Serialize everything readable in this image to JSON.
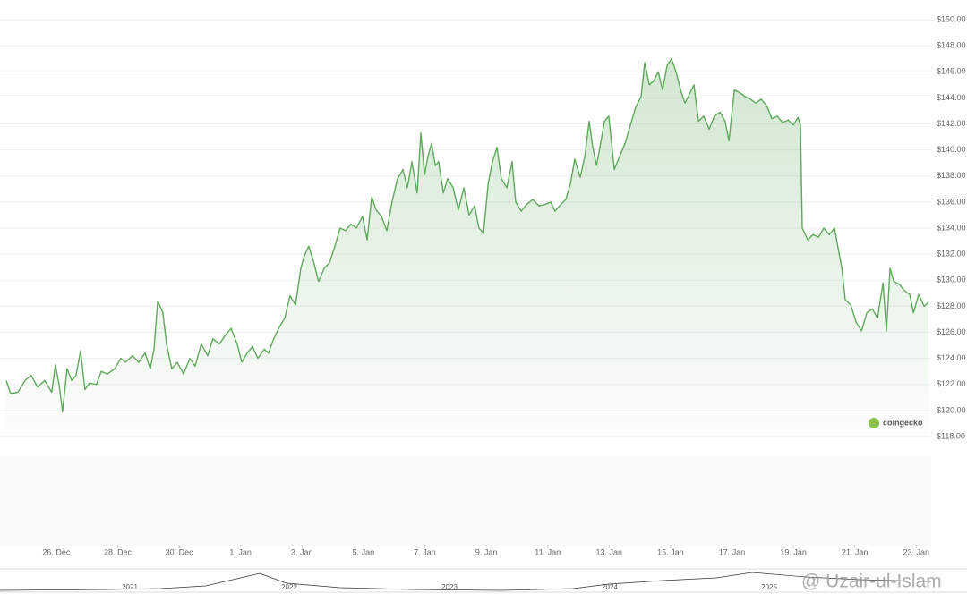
{
  "chart_data": {
    "type": "line",
    "color": "#5ea95b",
    "grid": true,
    "xlim": [
      24.37,
      54.4
    ],
    "ylim": [
      118,
      150
    ],
    "yticks": [
      {
        "value": 118,
        "label": "$118.00"
      },
      {
        "value": 120,
        "label": "$120.00"
      },
      {
        "value": 122,
        "label": "$122.00"
      },
      {
        "value": 124,
        "label": "$124.00"
      },
      {
        "value": 126,
        "label": "$126.00"
      },
      {
        "value": 128,
        "label": "$128.00"
      },
      {
        "value": 130,
        "label": "$130.00"
      },
      {
        "value": 132,
        "label": "$132.00"
      },
      {
        "value": 134,
        "label": "$134.00"
      },
      {
        "value": 136,
        "label": "$136.00"
      },
      {
        "value": 138,
        "label": "$138.00"
      },
      {
        "value": 140,
        "label": "$140.00"
      },
      {
        "value": 142,
        "label": "$142.00"
      },
      {
        "value": 144,
        "label": "$144.00"
      },
      {
        "value": 146,
        "label": "$146.00"
      },
      {
        "value": 148,
        "label": "$148.00"
      },
      {
        "value": 150,
        "label": "$150.00"
      }
    ],
    "xticks": [
      {
        "value": 26,
        "label": "26. Dec"
      },
      {
        "value": 28,
        "label": "28. Dec"
      },
      {
        "value": 30,
        "label": "30. Dec"
      },
      {
        "value": 32,
        "label": "1. Jan"
      },
      {
        "value": 34,
        "label": "3. Jan"
      },
      {
        "value": 36,
        "label": "5. Jan"
      },
      {
        "value": 38,
        "label": "7. Jan"
      },
      {
        "value": 40,
        "label": "9. Jan"
      },
      {
        "value": 42,
        "label": "11. Jan"
      },
      {
        "value": 44,
        "label": "13. Jan"
      },
      {
        "value": 46,
        "label": "15. Jan"
      },
      {
        "value": 48,
        "label": "17. Jan"
      },
      {
        "value": 50,
        "label": "19. Jan"
      },
      {
        "value": 52,
        "label": "21. Jan"
      },
      {
        "value": 54,
        "label": "23. Jan"
      }
    ],
    "x": [
      24.37,
      24.51,
      24.75,
      24.98,
      25.18,
      25.39,
      25.62,
      25.85,
      25.97,
      26.09,
      26.2,
      26.35,
      26.5,
      26.64,
      26.79,
      26.93,
      27.08,
      27.31,
      27.46,
      27.66,
      27.9,
      28.1,
      28.25,
      28.48,
      28.68,
      28.89,
      29.06,
      29.18,
      29.3,
      29.47,
      29.59,
      29.76,
      29.94,
      30.14,
      30.35,
      30.52,
      30.72,
      30.93,
      31.1,
      31.31,
      31.51,
      31.69,
      31.89,
      32.04,
      32.21,
      32.39,
      32.56,
      32.77,
      32.91,
      33.06,
      33.26,
      33.44,
      33.61,
      33.79,
      33.96,
      34.08,
      34.22,
      34.37,
      34.54,
      34.72,
      34.89,
      35.07,
      35.24,
      35.42,
      35.59,
      35.77,
      35.97,
      36.12,
      36.27,
      36.41,
      36.59,
      36.76,
      36.94,
      37.11,
      37.29,
      37.43,
      37.58,
      37.75,
      37.87,
      37.99,
      38.1,
      38.22,
      38.34,
      38.45,
      38.6,
      38.74,
      38.92,
      39.09,
      39.27,
      39.44,
      39.62,
      39.76,
      39.91,
      40.06,
      40.2,
      40.35,
      40.49,
      40.67,
      40.84,
      40.96,
      41.14,
      41.31,
      41.51,
      41.72,
      41.89,
      42.1,
      42.24,
      42.42,
      42.59,
      42.74,
      42.88,
      43.06,
      43.21,
      43.35,
      43.47,
      43.59,
      43.7,
      43.85,
      43.99,
      44.17,
      44.34,
      44.52,
      44.69,
      44.87,
      45.04,
      45.16,
      45.31,
      45.45,
      45.6,
      45.74,
      45.89,
      46.03,
      46.18,
      46.33,
      46.47,
      46.62,
      46.76,
      46.91,
      47.08,
      47.26,
      47.43,
      47.61,
      47.78,
      47.9,
      48.08,
      48.25,
      48.43,
      48.6,
      48.78,
      48.95,
      49.13,
      49.3,
      49.48,
      49.65,
      49.83,
      50.0,
      50.15,
      50.23,
      50.29,
      50.47,
      50.64,
      50.82,
      50.99,
      51.17,
      51.34,
      51.46,
      51.58,
      51.69,
      51.87,
      52.04,
      52.22,
      52.39,
      52.57,
      52.74,
      52.92,
      53.03,
      53.15,
      53.27,
      53.44,
      53.62,
      53.79,
      53.91,
      54.08,
      54.26,
      54.4
    ],
    "values": [
      122.3,
      121.3,
      121.4,
      122.3,
      122.7,
      121.8,
      122.3,
      121.4,
      123.5,
      122.0,
      119.9,
      123.2,
      122.3,
      122.7,
      124.6,
      121.6,
      122.1,
      122.0,
      123.0,
      122.8,
      123.2,
      124.0,
      123.7,
      124.2,
      123.7,
      124.4,
      123.2,
      124.7,
      128.4,
      127.5,
      125.1,
      123.2,
      123.7,
      122.8,
      124.0,
      123.4,
      125.1,
      124.2,
      125.5,
      125.1,
      125.8,
      126.3,
      125.1,
      123.7,
      124.4,
      124.9,
      124.0,
      124.7,
      124.4,
      125.4,
      126.4,
      127.1,
      128.8,
      128.1,
      130.9,
      131.9,
      132.6,
      131.5,
      129.9,
      130.9,
      131.3,
      132.6,
      134.0,
      133.8,
      134.3,
      134.0,
      134.9,
      133.1,
      136.4,
      135.4,
      134.9,
      133.8,
      136.1,
      137.8,
      138.5,
      137.1,
      139.1,
      136.7,
      141.3,
      138.1,
      139.5,
      140.5,
      138.8,
      139.1,
      136.7,
      137.8,
      137.1,
      135.4,
      137.1,
      135.0,
      135.7,
      134.0,
      133.6,
      137.4,
      139.1,
      140.2,
      137.8,
      137.1,
      139.1,
      136.0,
      135.3,
      135.8,
      136.2,
      135.7,
      135.8,
      136.0,
      135.3,
      135.8,
      136.2,
      137.4,
      139.3,
      137.9,
      139.5,
      142.2,
      140.2,
      138.8,
      140.2,
      142.2,
      142.6,
      138.5,
      139.5,
      140.5,
      141.9,
      143.3,
      144.1,
      146.7,
      145.0,
      145.3,
      146.0,
      144.6,
      146.5,
      147.0,
      146.0,
      144.6,
      143.6,
      144.3,
      145.0,
      142.2,
      142.6,
      141.6,
      142.6,
      142.9,
      142.2,
      140.7,
      144.6,
      144.4,
      144.1,
      143.9,
      143.6,
      143.9,
      143.4,
      142.4,
      142.6,
      142.1,
      142.3,
      141.9,
      142.5,
      141.9,
      134.0,
      133.1,
      133.5,
      133.3,
      134.0,
      133.5,
      134.0,
      132.4,
      130.9,
      128.5,
      128.1,
      126.8,
      126.1,
      127.5,
      127.8,
      127.1,
      129.8,
      126.1,
      130.9,
      129.9,
      129.7,
      129.2,
      128.9,
      127.5,
      128.9,
      128.0,
      128.3
    ],
    "navigator_labels": [
      "2021",
      "2022",
      "2023",
      "2024",
      "2025"
    ],
    "watermark": "coingecko",
    "credit": "@ Uzair-ul-Islam"
  }
}
